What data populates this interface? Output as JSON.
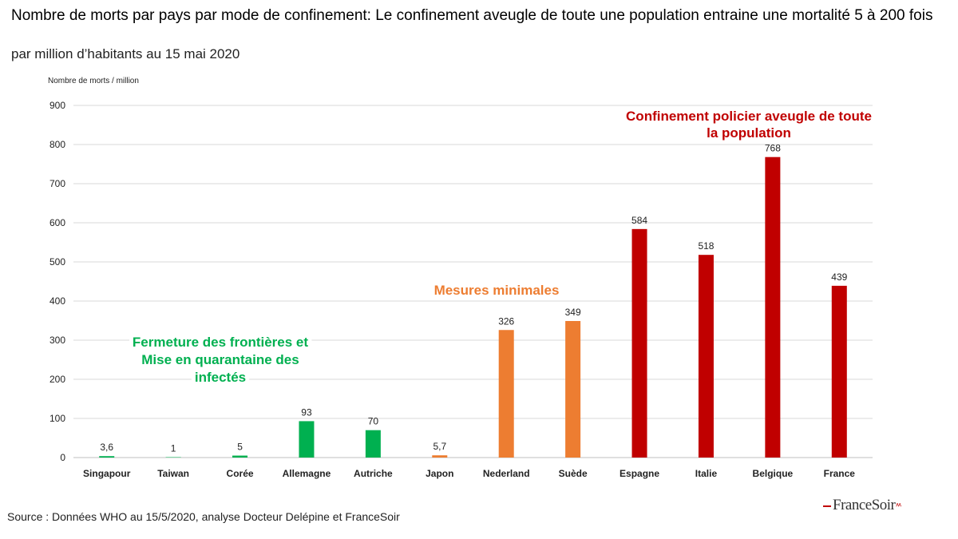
{
  "header": {
    "title": "Nombre de morts par pays par mode de confinement:  Le confinement aveugle de toute une population  entraine une mortalité 5 à 200 fois",
    "subtitle": "par million d’habitants au 15 mai 2020"
  },
  "footer": {
    "source": "Source : Données WHO au 15/5/2020, analyse Docteur Delépine et FranceSoir",
    "logo_text": "FranceSoir"
  },
  "chart_data": {
    "type": "bar",
    "ylabel": "Nombre de morts / million",
    "ylim": [
      0,
      900
    ],
    "yticks": [
      0,
      100,
      200,
      300,
      400,
      500,
      600,
      700,
      800,
      900
    ],
    "grid": true,
    "categories": [
      "Singapour",
      "Taiwan",
      "Corée",
      "Allemagne",
      "Autriche",
      "Japon",
      "Nederland",
      "Suède",
      "Espagne",
      "Italie",
      "Belgique",
      "France"
    ],
    "values": [
      3.6,
      1,
      5,
      93,
      70,
      5.7,
      326,
      349,
      584,
      518,
      768,
      439
    ],
    "value_labels": [
      "3,6",
      "1",
      "5",
      "93",
      "70",
      "5,7",
      "326",
      "349",
      "584",
      "518",
      "768",
      "439"
    ],
    "groups": [
      {
        "label_lines": [
          "Fermeture des frontières et",
          "Mise en quarantaine des",
          "infectés"
        ],
        "color": "#00b050",
        "indices": [
          0,
          1,
          2,
          3,
          4
        ]
      },
      {
        "label_lines": [
          "Mesures minimales"
        ],
        "color": "#ed7d31",
        "indices": [
          5,
          6,
          7
        ]
      },
      {
        "label_lines": [
          "Confinement policier aveugle de toute",
          "la population"
        ],
        "color": "#c00000",
        "indices": [
          8,
          9,
          10,
          11
        ]
      }
    ]
  }
}
